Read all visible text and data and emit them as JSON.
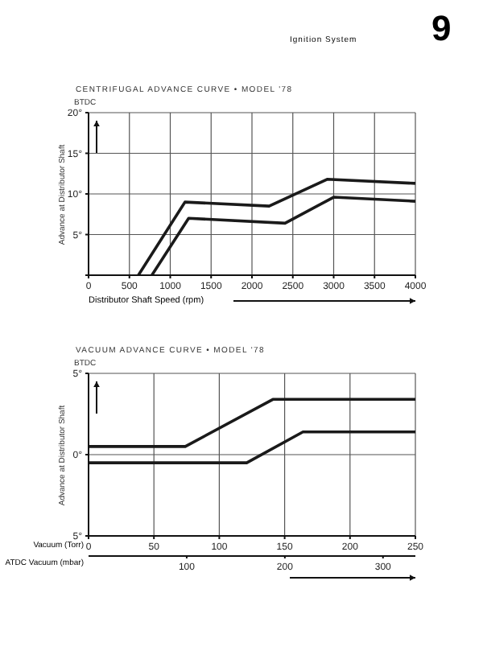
{
  "chart_data": [
    {
      "type": "line",
      "title": "CENTRIFUGAL ADVANCE CURVE • MODEL '78",
      "xlabel": "Distributor Shaft Speed (rpm)",
      "ylabel": "Advance at Distributor Shaft",
      "annotations": [
        "Ignition System",
        "9",
        "BTDC"
      ],
      "series": [
        {
          "color": "#1a1a1a",
          "x": [
            610,
            1180,
            2210,
            2920,
            4000
          ],
          "values": [
            0,
            9,
            8.5,
            11.8,
            11.3
          ]
        },
        {
          "color": "#1a1a1a",
          "x": [
            775,
            1225,
            2405,
            3000,
            4000
          ],
          "values": [
            0,
            7,
            6.4,
            9.6,
            9.1
          ]
        }
      ],
      "xlim": [
        0,
        4000
      ],
      "xticks": [
        0,
        500,
        1000,
        1500,
        2000,
        2500,
        3000,
        3500,
        4000
      ],
      "ylim": [
        0,
        20
      ],
      "yticks": [
        {
          "value": 0,
          "label": null
        },
        {
          "value": 5,
          "label": "5°"
        },
        {
          "value": 10,
          "label": "10°"
        },
        {
          "value": 15,
          "label": "15°"
        },
        {
          "value": 20,
          "label": "20°"
        }
      ],
      "grid": true,
      "legend": false,
      "marker": "none",
      "line_style": "solid"
    },
    {
      "type": "line",
      "title": "VACUUM ADVANCE CURVE • MODEL '78",
      "xlabel": "Vacuum (Torr)",
      "x2label": "ATDC Vacuum (mbar)",
      "ylabel": "Advance at Distributor Shaft",
      "annotations": [
        "BTDC"
      ],
      "series": [
        {
          "color": "#1a1a1a",
          "x": [
            0,
            74,
            141,
            250
          ],
          "values": [
            0.5,
            0.5,
            3.4,
            3.4
          ]
        },
        {
          "color": "#1a1a1a",
          "x": [
            0,
            121,
            164,
            250
          ],
          "values": [
            -0.5,
            -0.5,
            1.4,
            1.4
          ]
        }
      ],
      "xlim": [
        0,
        250
      ],
      "xticks": [
        0,
        50,
        100,
        150,
        200,
        250
      ],
      "x2lim": [
        0,
        333
      ],
      "x2ticks": [
        100,
        200,
        300
      ],
      "ylim": [
        -5,
        5
      ],
      "yticks": [
        {
          "value": -5,
          "label": "5°"
        },
        {
          "value": 0,
          "label": "0°"
        },
        {
          "value": 5,
          "label": "5°"
        }
      ],
      "grid": true,
      "legend": false,
      "marker": "none",
      "line_style": "solid"
    }
  ]
}
